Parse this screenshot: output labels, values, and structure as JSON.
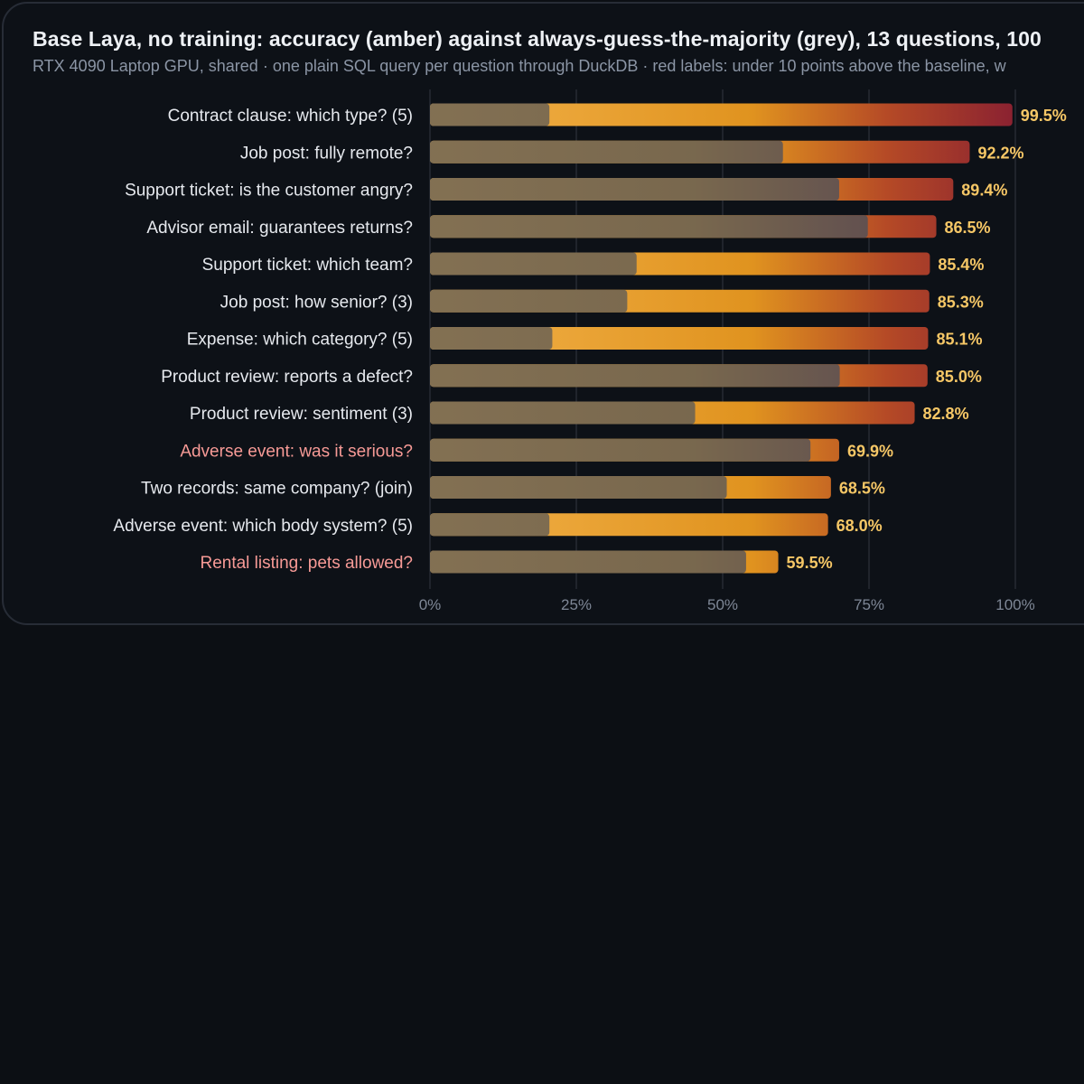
{
  "chart_data": {
    "type": "bar",
    "orientation": "horizontal",
    "title": "Base Laya, no training: accuracy (amber) against always-guess-the-majority (grey), 13 questions, 100",
    "subtitle": "RTX 4090 Laptop GPU, shared · one plain SQL query per question through DuckDB · red labels: under 10 points above the baseline, w",
    "categories": [
      "Contract clause: which type? (5)",
      "Job post: fully remote?",
      "Support ticket: is the customer angry?",
      "Advisor email: guarantees returns?",
      "Support ticket: which team?",
      "Job post: how senior? (3)",
      "Expense: which category? (5)",
      "Product review: reports a defect?",
      "Product review: sentiment (3)",
      "Adverse event: was it serious?",
      "Two records: same company? (join)",
      "Adverse event: which body system? (5)",
      "Rental listing: pets allowed?"
    ],
    "series": [
      {
        "name": "accuracy",
        "values": [
          99.5,
          92.2,
          89.4,
          86.5,
          85.4,
          85.3,
          85.1,
          85.0,
          82.8,
          69.9,
          68.5,
          68.0,
          59.5
        ]
      },
      {
        "name": "always-guess-the-majority",
        "values": [
          20.4,
          60.3,
          69.9,
          74.8,
          35.3,
          33.7,
          20.9,
          70.0,
          45.3,
          65.0,
          50.7,
          20.4,
          54.0
        ]
      }
    ],
    "value_labels": [
      "99.5%",
      "92.2%",
      "89.4%",
      "86.5%",
      "85.4%",
      "85.3%",
      "85.1%",
      "85.0%",
      "82.8%",
      "69.9%",
      "68.5%",
      "68.0%",
      "59.5%"
    ],
    "highlighted_red": [
      false,
      false,
      false,
      false,
      false,
      false,
      false,
      false,
      false,
      true,
      false,
      false,
      true
    ],
    "x_ticks": [
      "0%",
      "25%",
      "50%",
      "75%",
      "100%"
    ],
    "xlim": [
      0,
      100
    ],
    "grid": "vertical",
    "colors": {
      "accuracy": "#e8a33a",
      "accuracy_end": "#8c2330",
      "baseline": "#7a6a52",
      "label_text": "#e6e9ee",
      "label_red": "#f79a96",
      "value_text": "#f6c766",
      "background": "#0d1117"
    }
  }
}
